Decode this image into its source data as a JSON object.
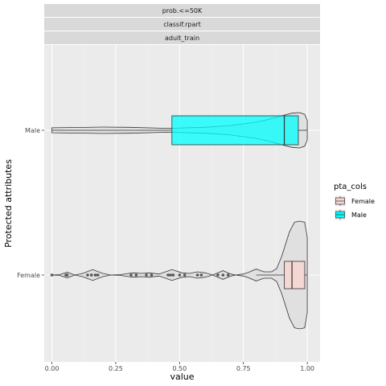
{
  "chart_data": {
    "type": "box_violin",
    "facet_strips": [
      "prob.<=50K",
      "classif.rpart",
      "adult_train"
    ],
    "xlabel": "value",
    "ylabel": "Protected attributes",
    "xlim": [
      -0.03,
      1.05
    ],
    "x_ticks": [
      "0.00",
      "0.25",
      "0.50",
      "0.75",
      "1.00"
    ],
    "x_tick_values": [
      0,
      0.25,
      0.5,
      0.75,
      1.0
    ],
    "categories": [
      "Female",
      "Male"
    ],
    "legend": {
      "title": "pta_cols",
      "placement": "right",
      "entries": [
        {
          "name": "Female",
          "color": "#F4D7D2"
        },
        {
          "name": "Male",
          "color": "#00FFFF"
        }
      ]
    },
    "series": [
      {
        "name": "Male",
        "color": "#00FFFF",
        "box": {
          "q1": 0.47,
          "median": 0.91,
          "q3": 0.965,
          "whisker_low": 0.0,
          "whisker_high": 1.0
        },
        "violin": {
          "y": [
            0.0,
            0.1,
            0.2,
            0.3,
            0.4,
            0.45,
            0.5,
            0.6,
            0.7,
            0.8,
            0.85,
            0.88,
            0.91,
            0.94,
            0.97,
            0.99,
            1.0
          ],
          "density": [
            0.14,
            0.16,
            0.18,
            0.17,
            0.13,
            0.11,
            0.13,
            0.17,
            0.27,
            0.46,
            0.62,
            0.74,
            0.86,
            0.97,
            1.0,
            0.9,
            0.55
          ]
        }
      },
      {
        "name": "Female",
        "color": "#F4D7D2",
        "box": {
          "q1": 0.91,
          "median": 0.94,
          "q3": 0.99,
          "whisker_low": 0.8,
          "whisker_high": 1.0
        },
        "outliers": [
          0.0,
          0.055,
          0.06,
          0.14,
          0.155,
          0.17,
          0.18,
          0.31,
          0.33,
          0.37,
          0.39,
          0.455,
          0.465,
          0.475,
          0.5,
          0.52,
          0.57,
          0.585,
          0.65,
          0.67,
          0.69
        ],
        "violin": {
          "y": [
            0.0,
            0.03,
            0.06,
            0.09,
            0.12,
            0.16,
            0.2,
            0.23,
            0.27,
            0.3,
            0.32,
            0.35,
            0.38,
            0.42,
            0.47,
            0.51,
            0.54,
            0.57,
            0.6,
            0.63,
            0.67,
            0.7,
            0.72,
            0.75,
            0.77,
            0.8,
            0.83,
            0.86,
            0.88,
            0.9,
            0.93,
            0.95,
            0.97,
            0.99,
            1.0
          ],
          "density": [
            0.0,
            0.008,
            0.05,
            0.0,
            0.03,
            0.1,
            0.03,
            0.0,
            0.008,
            0.03,
            0.04,
            0.03,
            0.04,
            0.02,
            0.1,
            0.04,
            0.03,
            0.06,
            0.04,
            0.0,
            0.08,
            0.02,
            0.0,
            0.02,
            0.05,
            0.11,
            0.06,
            0.06,
            0.12,
            0.35,
            0.8,
            0.98,
            1.0,
            0.98,
            0.7
          ]
        }
      }
    ],
    "grid": true
  }
}
